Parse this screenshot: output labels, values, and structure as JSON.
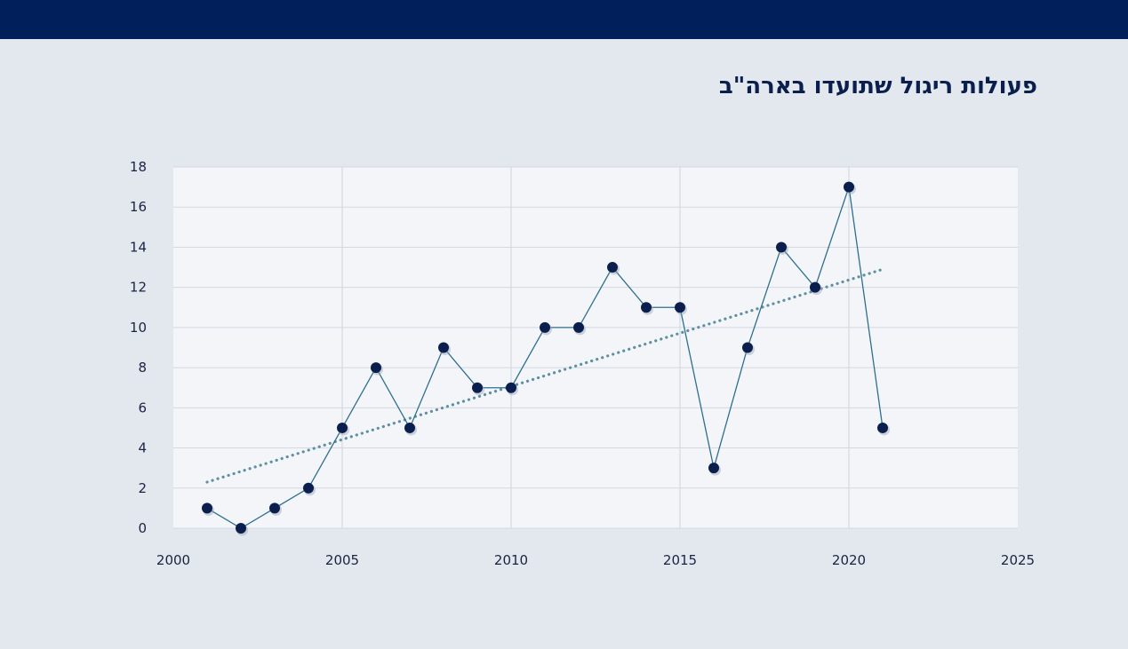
{
  "colors": {
    "header_bar": "#001f5b",
    "background": "#e3e8ef",
    "plot_area": "#f3f5f9",
    "grid": "#d3d8e2",
    "series_line": "#2e6f8e",
    "marker": "#0a1f4d",
    "trendline": "#5f8fa2"
  },
  "chart_data": {
    "type": "scatter",
    "title": "פעולות ריגול שתועדו בארה\"ב",
    "xlabel": "",
    "ylabel": "",
    "xlim": [
      2000,
      2025
    ],
    "ylim": [
      0,
      18
    ],
    "x_ticks": [
      2000,
      2005,
      2010,
      2015,
      2020,
      2025
    ],
    "y_ticks": [
      0,
      2,
      4,
      6,
      8,
      10,
      12,
      14,
      16,
      18
    ],
    "grid": true,
    "legend": "none",
    "series": [
      {
        "x": [
          2001,
          2002,
          2003,
          2004,
          2005,
          2006,
          2007,
          2008,
          2009,
          2010,
          2011,
          2012,
          2013,
          2014,
          2015,
          2016,
          2017,
          2018,
          2019,
          2020,
          2021
        ],
        "y": [
          1,
          0,
          1,
          2,
          5,
          8,
          5,
          9,
          7,
          7,
          10,
          10,
          13,
          11,
          11,
          3,
          9,
          14,
          12,
          17,
          5
        ],
        "lines_connect_points": true
      }
    ],
    "trendline": {
      "style": "dotted",
      "start": {
        "x": 2001,
        "y": 2.3
      },
      "end": {
        "x": 2021,
        "y": 12.9
      }
    }
  }
}
